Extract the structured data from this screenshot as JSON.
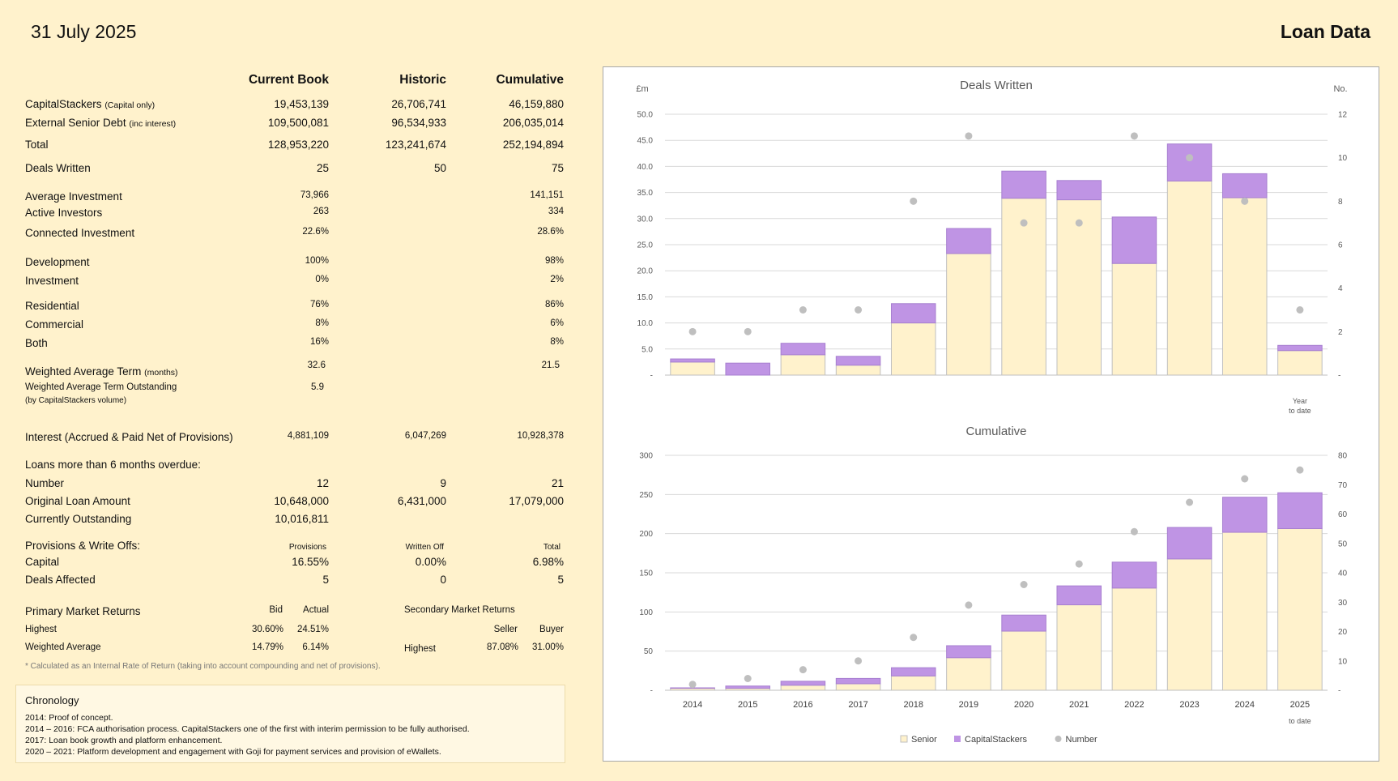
{
  "header": {
    "date": "31 July 2025",
    "title": "Loan Data"
  },
  "columns": {
    "current": "Current Book",
    "historic": "Historic",
    "cumulative": "Cumulative"
  },
  "rows": {
    "capitalstackers": {
      "label": "CapitalStackers",
      "note": "(Capital only)",
      "current": "19,453,139",
      "historic": "26,706,741",
      "cumulative": "46,159,880"
    },
    "senior_debt": {
      "label": "External Senior Debt",
      "note": "(inc interest)",
      "current": "109,500,081",
      "historic": "96,534,933",
      "cumulative": "206,035,014"
    },
    "total": {
      "label": "Total",
      "current": "128,953,220",
      "historic": "123,241,674",
      "cumulative": "252,194,894"
    },
    "deals_written": {
      "label": "Deals Written",
      "current": "25",
      "historic": "50",
      "cumulative": "75"
    },
    "avg_investment": {
      "label": "Average Investment",
      "current": "73,966",
      "cumulative": "141,151"
    },
    "active_investors": {
      "label": "Active Investors",
      "current": "263",
      "cumulative": "334"
    },
    "connected_investment": {
      "label": "Connected Investment",
      "current": "22.6%",
      "cumulative": "28.6%"
    },
    "development": {
      "label": "Development",
      "current": "100%",
      "cumulative": "98%"
    },
    "investment": {
      "label": "Investment",
      "current": "0%",
      "cumulative": "2%"
    },
    "residential": {
      "label": "Residential",
      "current": "76%",
      "cumulative": "86%"
    },
    "commercial": {
      "label": "Commercial",
      "current": "8%",
      "cumulative": "6%"
    },
    "both": {
      "label": "Both",
      "current": "16%",
      "cumulative": "8%"
    },
    "wat": {
      "label": "Weighted Average Term",
      "note": "(months)",
      "current": "32.6",
      "cumulative": "21.5"
    },
    "wato": {
      "label": "Weighted Average Term Outstanding",
      "note": "(by CapitalStackers volume)",
      "current": "5.9"
    },
    "interest": {
      "label": "Interest (Accrued & Paid Net of Provisions)",
      "current": "4,881,109",
      "historic": "6,047,269",
      "cumulative": "10,928,378"
    }
  },
  "overdue": {
    "title": "Loans more than 6 months overdue:",
    "number": {
      "label": "Number",
      "current": "12",
      "historic": "9",
      "cumulative": "21"
    },
    "original": {
      "label": "Original Loan Amount",
      "current": "10,648,000",
      "historic": "6,431,000",
      "cumulative": "17,079,000"
    },
    "outstanding": {
      "label": "Currently Outstanding",
      "current": "10,016,811"
    }
  },
  "provisions": {
    "title": "Provisions & Write Offs:",
    "h1": "Provisions",
    "h2": "Written Off",
    "h3": "Total",
    "capital": {
      "label": "Capital",
      "v1": "16.55%",
      "v2": "0.00%",
      "v3": "6.98%"
    },
    "deals": {
      "label": "Deals Affected",
      "v1": "5",
      "v2": "0",
      "v3": "5"
    }
  },
  "returns": {
    "primary_title": "Primary Market Returns",
    "bid": "Bid",
    "actual": "Actual",
    "highest_label": "Highest",
    "highest_bid": "30.60%",
    "highest_actual": "24.51%",
    "wavg_label": "Weighted Average",
    "wavg_bid": "14.79%",
    "wavg_actual": "6.14%",
    "secondary_title": "Secondary Market Returns",
    "seller": "Seller",
    "buyer": "Buyer",
    "sec_highest_label": "Highest",
    "sec_seller": "87.08%",
    "sec_buyer": "31.00%"
  },
  "footnote": "* Calculated as an Internal Rate of Return (taking into account compounding and net of provisions).",
  "chronology": {
    "title": "Chronology",
    "entries": [
      "2014:   Proof of concept.",
      "2014 – 2016:   FCA authorisation process.  CapitalStackers one of the first with interim permission to be fully authorised.",
      "2017:   Loan book growth and platform enhancement.",
      "2020 – 2021:   Platform development and engagement with Goji for payment services and provision of eWallets."
    ]
  },
  "colors": {
    "senior": "#fff2cc",
    "capitalstackers": "#bf94e4",
    "number": "#bfbfbf",
    "grid": "#d9d9d9"
  },
  "chart_data": [
    {
      "type": "bar",
      "title": "Deals Written",
      "ylabel": "£m",
      "y2label": "No.",
      "categories": [
        "2014",
        "2015",
        "2016",
        "2017",
        "2018",
        "2019",
        "2020",
        "2021",
        "2022",
        "2023",
        "2024",
        "2025"
      ],
      "series": [
        {
          "name": "Senior",
          "values": [
            2.5,
            0,
            3.9,
            1.9,
            10.0,
            23.3,
            33.9,
            33.6,
            21.4,
            37.2,
            34.0,
            4.7
          ]
        },
        {
          "name": "CapitalStackers",
          "values": [
            0.6,
            2.3,
            2.2,
            1.7,
            3.7,
            4.8,
            5.2,
            3.7,
            8.9,
            7.1,
            4.6,
            1.0
          ]
        },
        {
          "name": "Number",
          "axis": "right",
          "values": [
            2,
            2,
            3,
            3,
            8,
            11,
            7,
            7,
            11,
            10,
            8,
            3
          ]
        }
      ],
      "ylim": [
        0,
        50
      ],
      "y2lim": [
        0,
        12
      ],
      "yticks": [
        "-",
        "5.0",
        "10.0",
        "15.0",
        "20.0",
        "25.0",
        "30.0",
        "35.0",
        "40.0",
        "45.0",
        "50.0"
      ],
      "y2ticks": [
        "-",
        "2",
        "4",
        "6",
        "8",
        "10",
        "12"
      ],
      "annotation": [
        "Year",
        "to date"
      ]
    },
    {
      "type": "bar",
      "title": "Cumulative",
      "categories": [
        "2014",
        "2015",
        "2016",
        "2017",
        "2018",
        "2019",
        "2020",
        "2021",
        "2022",
        "2023",
        "2024",
        "2025"
      ],
      "series": [
        {
          "name": "Senior",
          "values": [
            2.5,
            2.5,
            6.4,
            8.3,
            18.3,
            41.6,
            75.5,
            109.1,
            130.5,
            167.7,
            201.7,
            206.4
          ]
        },
        {
          "name": "CapitalStackers",
          "values": [
            0.6,
            2.9,
            5.1,
            6.8,
            10.5,
            15.3,
            20.5,
            24.2,
            33.1,
            40.2,
            44.8,
            45.8
          ]
        },
        {
          "name": "Number",
          "axis": "right",
          "values": [
            2,
            4,
            7,
            10,
            18,
            29,
            36,
            43,
            54,
            64,
            72,
            75
          ]
        }
      ],
      "ylim": [
        0,
        300
      ],
      "y2lim": [
        0,
        80
      ],
      "yticks": [
        "-",
        "50",
        "100",
        "150",
        "200",
        "250",
        "300"
      ],
      "y2ticks": [
        "-",
        "10",
        "20",
        "30",
        "40",
        "50",
        "60",
        "70",
        "80"
      ],
      "xnote": "to date",
      "legend": [
        "Senior",
        "CapitalStackers",
        "Number"
      ]
    }
  ]
}
